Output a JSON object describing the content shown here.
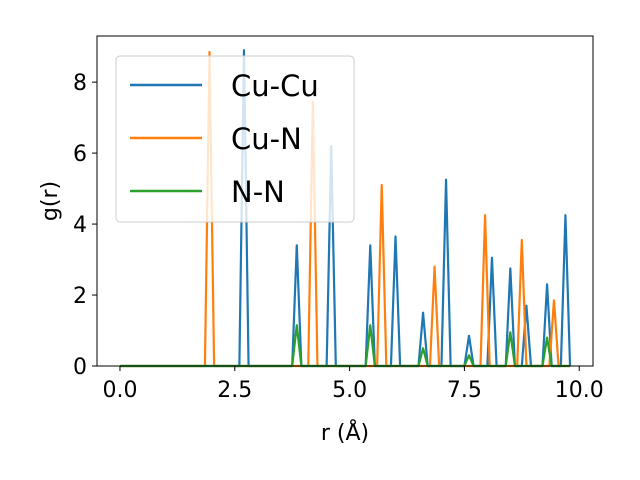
{
  "chart_data": {
    "type": "line",
    "xlabel": "r (Å)",
    "ylabel": "g(r)",
    "xlim": [
      -0.5,
      10.3
    ],
    "ylim": [
      0,
      9.3
    ],
    "xticks": [
      0.0,
      2.5,
      5.0,
      7.5,
      10.0
    ],
    "xtick_labels": [
      "0.0",
      "2.5",
      "5.0",
      "7.5",
      "10.0"
    ],
    "yticks": [
      0,
      2,
      4,
      6,
      8
    ],
    "ytick_labels": [
      "0",
      "2",
      "4",
      "6",
      "8"
    ],
    "legend_position": "upper-left",
    "series": [
      {
        "name": "Cu-Cu",
        "color": "#1f77b4",
        "x": [
          0.0,
          2.6,
          2.7,
          2.8,
          3.75,
          3.85,
          3.95,
          4.5,
          4.6,
          4.7,
          5.35,
          5.45,
          5.55,
          5.9,
          6.0,
          6.1,
          6.5,
          6.6,
          6.7,
          7.0,
          7.1,
          7.2,
          7.5,
          7.6,
          7.7,
          8.0,
          8.1,
          8.2,
          8.4,
          8.5,
          8.6,
          8.75,
          8.85,
          8.95,
          9.2,
          9.3,
          9.4,
          9.6,
          9.7,
          9.8
        ],
        "y": [
          0,
          0,
          8.9,
          0,
          0,
          3.4,
          0,
          0,
          6.2,
          0,
          0,
          3.4,
          0,
          0,
          3.65,
          0,
          0,
          1.5,
          0,
          0,
          5.25,
          0,
          0,
          0.85,
          0,
          0,
          3.05,
          0,
          0,
          2.75,
          0,
          0,
          1.7,
          0,
          0,
          2.3,
          0,
          0,
          4.25,
          0
        ]
      },
      {
        "name": "Cu-N",
        "color": "#ff7f0e",
        "x": [
          0.0,
          1.85,
          1.95,
          2.05,
          4.1,
          4.2,
          4.3,
          5.6,
          5.7,
          5.8,
          6.75,
          6.85,
          6.95,
          7.85,
          7.95,
          8.05,
          8.65,
          8.75,
          8.85,
          9.35,
          9.45,
          9.55,
          9.8
        ],
        "y": [
          0,
          0,
          8.85,
          0,
          0,
          7.45,
          0,
          0,
          5.1,
          0,
          0,
          2.8,
          0,
          0,
          4.25,
          0,
          0,
          3.55,
          0,
          0,
          1.85,
          0,
          0
        ]
      },
      {
        "name": "N-N",
        "color": "#2ca02c",
        "x": [
          0.0,
          3.75,
          3.85,
          3.95,
          5.35,
          5.45,
          5.55,
          6.5,
          6.6,
          6.7,
          7.5,
          7.6,
          7.7,
          8.4,
          8.5,
          8.6,
          9.2,
          9.3,
          9.4,
          9.8
        ],
        "y": [
          0,
          0,
          1.15,
          0,
          0,
          1.15,
          0,
          0,
          0.5,
          0,
          0,
          0.3,
          0,
          0,
          0.95,
          0,
          0,
          0.8,
          0,
          0
        ]
      }
    ]
  }
}
